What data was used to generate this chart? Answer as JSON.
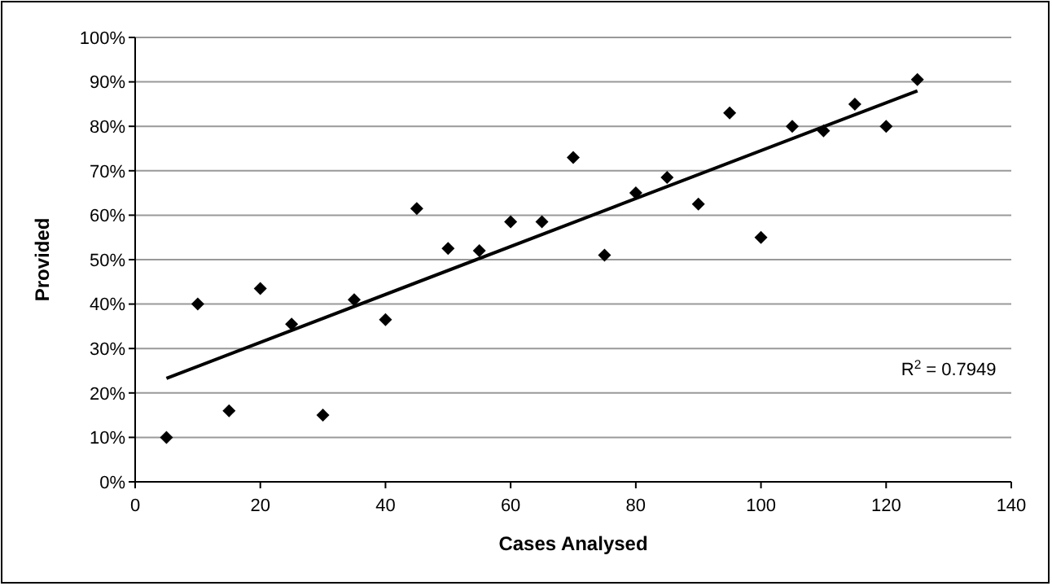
{
  "chart_data": {
    "type": "scatter",
    "xlabel": "Cases Analysed",
    "ylabel": "Provided",
    "xlim": [
      0,
      140
    ],
    "xticks": [
      0,
      20,
      40,
      60,
      80,
      100,
      120,
      140
    ],
    "ylim": [
      0,
      100
    ],
    "yticks": [
      {
        "value": 0,
        "label": "0%"
      },
      {
        "value": 10,
        "label": "10%"
      },
      {
        "value": 20,
        "label": "20%"
      },
      {
        "value": 30,
        "label": "30%"
      },
      {
        "value": 40,
        "label": "40%"
      },
      {
        "value": 50,
        "label": "50%"
      },
      {
        "value": 60,
        "label": "60%"
      },
      {
        "value": 70,
        "label": "70%"
      },
      {
        "value": 80,
        "label": "80%"
      },
      {
        "value": 90,
        "label": "90%"
      },
      {
        "value": 100,
        "label": "100%"
      }
    ],
    "grid": "y",
    "series": [
      {
        "color": "#000000",
        "marker": "diamond",
        "x": [
          5,
          10,
          15,
          20,
          25,
          30,
          35,
          40,
          45,
          50,
          55,
          60,
          65,
          70,
          75,
          80,
          85,
          90,
          95,
          100,
          105,
          110,
          115,
          120,
          125
        ],
        "values": [
          10,
          40,
          16,
          43.5,
          35.5,
          15,
          41,
          36.5,
          61.5,
          52.5,
          52,
          58.5,
          58.5,
          73,
          51,
          65,
          68.5,
          62.5,
          83,
          55,
          80,
          79,
          85,
          80,
          90.5
        ]
      },
      {
        "type": "line",
        "color": "#000000",
        "marker": "none",
        "line_style": "solid",
        "x": [
          5,
          125
        ],
        "values": [
          23.3,
          88
        ]
      }
    ],
    "annotations": [
      "R$^{2}$ = 0.7949"
    ]
  }
}
